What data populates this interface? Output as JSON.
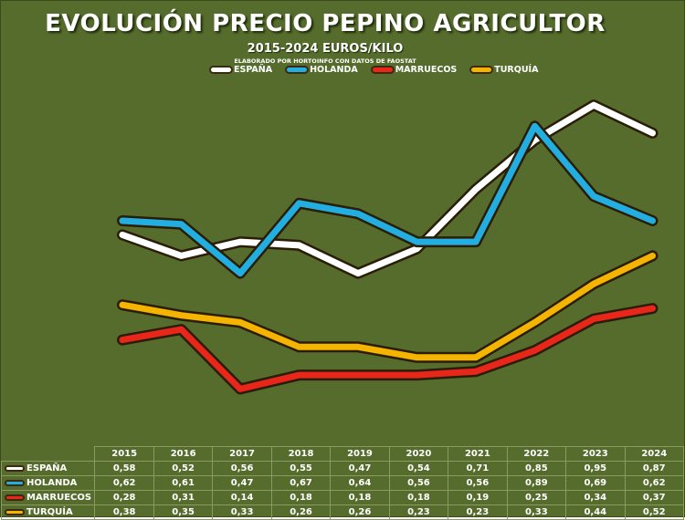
{
  "chart_data": {
    "type": "line",
    "title": "EVOLUCIÓN PRECIO PEPINO AGRICULTOR",
    "subtitle": "2015-2024 EUROS/KILO",
    "source_note": "ELABORADO POR HORTOINFO CON DATOS DE  FAOSTAT",
    "categories": [
      "2015",
      "2016",
      "2017",
      "2018",
      "2019",
      "2020",
      "2021",
      "2022",
      "2023",
      "2024"
    ],
    "series": [
      {
        "name": "ESPAÑA",
        "color": "#ffffff",
        "values": [
          0.58,
          0.52,
          0.56,
          0.55,
          0.47,
          0.54,
          0.71,
          0.85,
          0.95,
          0.87
        ]
      },
      {
        "name": "HOLANDA",
        "color": "#22aee0",
        "values": [
          0.62,
          0.61,
          0.47,
          0.67,
          0.64,
          0.56,
          0.56,
          0.89,
          0.69,
          0.62
        ]
      },
      {
        "name": "MARRUECOS",
        "color": "#e8261a",
        "values": [
          0.28,
          0.31,
          0.14,
          0.18,
          0.18,
          0.18,
          0.19,
          0.25,
          0.34,
          0.37
        ]
      },
      {
        "name": "TURQUÍA",
        "color": "#f4b400",
        "values": [
          0.38,
          0.35,
          0.33,
          0.26,
          0.26,
          0.23,
          0.23,
          0.33,
          0.44,
          0.52
        ]
      }
    ],
    "ylim": [
      0.05,
      1.0
    ],
    "grid": false,
    "legend": "top-center",
    "background": "#566c2c"
  }
}
